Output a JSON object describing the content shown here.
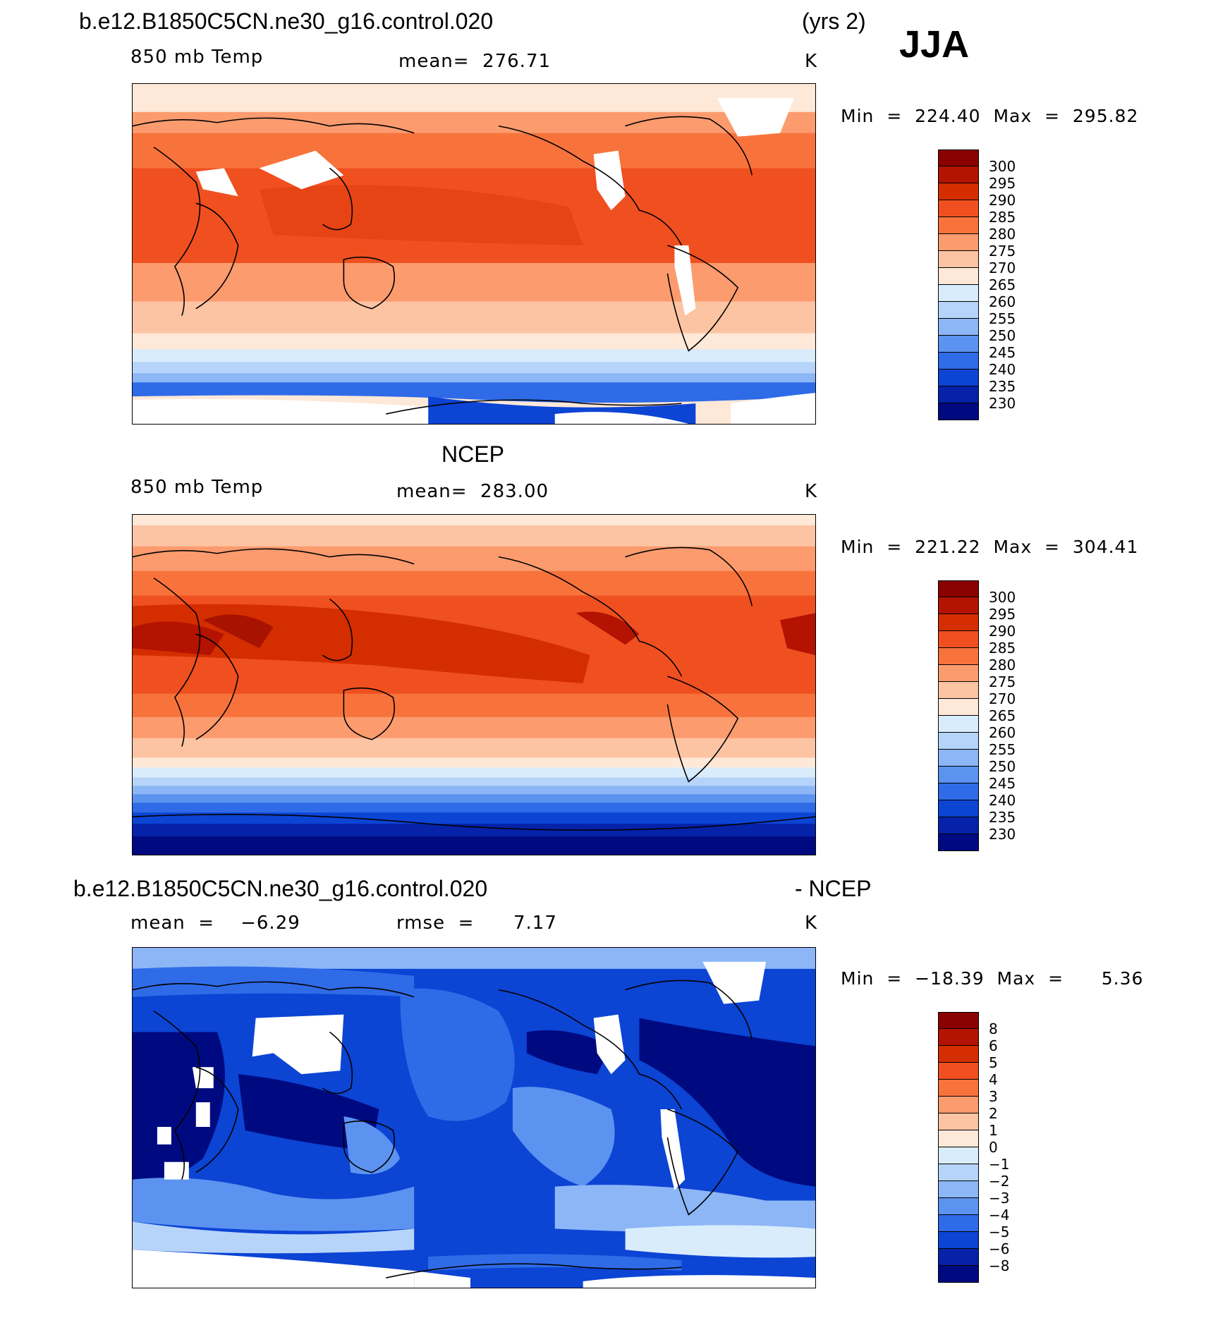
{
  "header": {
    "case_name": "b.e12.B1850C5CN.ne30_g16.control.020",
    "years": "(yrs 2)",
    "season": "JJA"
  },
  "panels": [
    {
      "title": "",
      "variable": "850 mb Temp",
      "stat_left": "",
      "stat_right": "mean=  276.71",
      "units": "K",
      "minmax": "Min  =  224.40  Max  =  295.82",
      "colorbar": {
        "labels": [
          "300",
          "295",
          "290",
          "285",
          "280",
          "275",
          "270",
          "265",
          "260",
          "255",
          "250",
          "245",
          "240",
          "235",
          "230"
        ],
        "colors": [
          "#8b0000",
          "#b31300",
          "#d42e00",
          "#f05020",
          "#f8733c",
          "#fb9b6e",
          "#fdc4a3",
          "#fee8d8",
          "#d8ecfb",
          "#b6d4f9",
          "#8cb6f6",
          "#5c93f0",
          "#2f6be7",
          "#0c44d4",
          "#0522a8",
          "#000a80"
        ]
      }
    },
    {
      "title": "NCEP",
      "variable": "850 mb Temp",
      "stat_left": "",
      "stat_right": "mean=  283.00",
      "units": "K",
      "minmax": "Min  =  221.22  Max  =  304.41",
      "colorbar": {
        "labels": [
          "300",
          "295",
          "290",
          "285",
          "280",
          "275",
          "270",
          "265",
          "260",
          "255",
          "250",
          "245",
          "240",
          "235",
          "230"
        ],
        "colors": [
          "#8b0000",
          "#b31300",
          "#d42e00",
          "#f05020",
          "#f8733c",
          "#fb9b6e",
          "#fdc4a3",
          "#fee8d8",
          "#d8ecfb",
          "#b6d4f9",
          "#8cb6f6",
          "#5c93f0",
          "#2f6be7",
          "#0c44d4",
          "#0522a8",
          "#000a80"
        ]
      }
    },
    {
      "title": "b.e12.B1850C5CN.ne30_g16.control.020",
      "title_right": "- NCEP",
      "variable": "",
      "stat_left": "mean  =    −6.29",
      "stat_right": "rmse  =      7.17",
      "units": "K",
      "minmax": "Min  =  −18.39  Max  =      5.36",
      "colorbar": {
        "labels": [
          "8",
          "6",
          "5",
          "4",
          "3",
          "2",
          "1",
          "0",
          "−1",
          "−2",
          "−3",
          "−4",
          "−5",
          "−6",
          "−8"
        ],
        "colors": [
          "#8b0000",
          "#b31300",
          "#d42e00",
          "#f05020",
          "#f8733c",
          "#fb9b6e",
          "#fdc4a3",
          "#fee8d8",
          "#d8ecfb",
          "#b6d4f9",
          "#8cb6f6",
          "#5c93f0",
          "#2f6be7",
          "#0c44d4",
          "#0522a8",
          "#000a80"
        ]
      }
    }
  ]
}
